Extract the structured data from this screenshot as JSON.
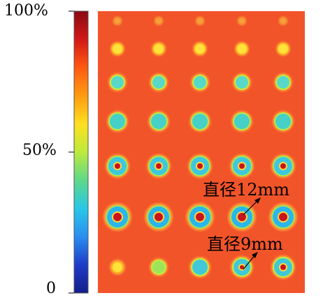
{
  "colorbar": {
    "ticks": [
      {
        "label": "100%",
        "value": 100
      },
      {
        "label": "50%",
        "value": 50
      },
      {
        "label": "0",
        "value": 0
      }
    ],
    "colors": [
      "#8a0a12",
      "#d21818",
      "#ff5a10",
      "#ff9a10",
      "#ffe020",
      "#bcea3c",
      "#5ed88a",
      "#28c8e8",
      "#2a8ef0",
      "#1e3cc8",
      "#141e8a"
    ]
  },
  "field": {
    "background_color": "#f2542a",
    "rows": 7,
    "cols": 5
  },
  "annotations": {
    "label_12mm": "直径12mm",
    "label_9mm": "直径9mm"
  }
}
